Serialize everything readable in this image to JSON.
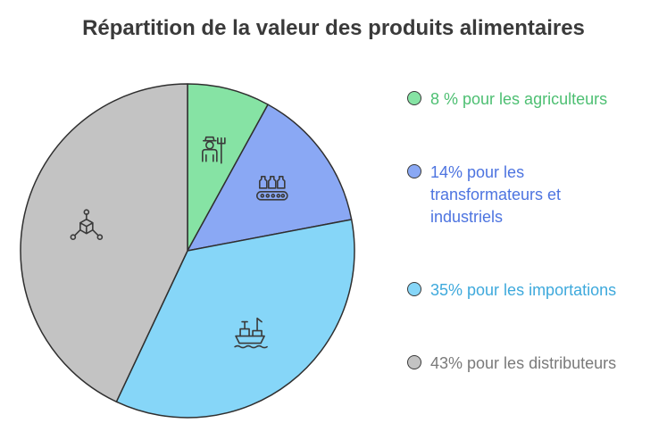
{
  "chart_data": {
    "type": "pie",
    "title": "Répartition de la valeur des produits alimentaires",
    "slices": [
      {
        "label": "8 % pour les agriculteurs",
        "value": 8,
        "color": "#86e3a4",
        "text_color": "#4dbf72",
        "icon": "farmer-icon"
      },
      {
        "label": "14% pour les transformateurs et industriels",
        "value": 14,
        "color": "#8aa8f4",
        "text_color": "#4d74e0",
        "icon": "factory-conveyor-icon"
      },
      {
        "label": "35% pour les importations",
        "value": 35,
        "color": "#86d6f8",
        "text_color": "#3ea9dc",
        "icon": "cargo-ship-icon"
      },
      {
        "label": "43% pour les distributeurs",
        "value": 43,
        "color": "#c3c3c3",
        "text_color": "#7a7a7a",
        "icon": "distribution-network-icon"
      }
    ],
    "legend_position": "right"
  }
}
